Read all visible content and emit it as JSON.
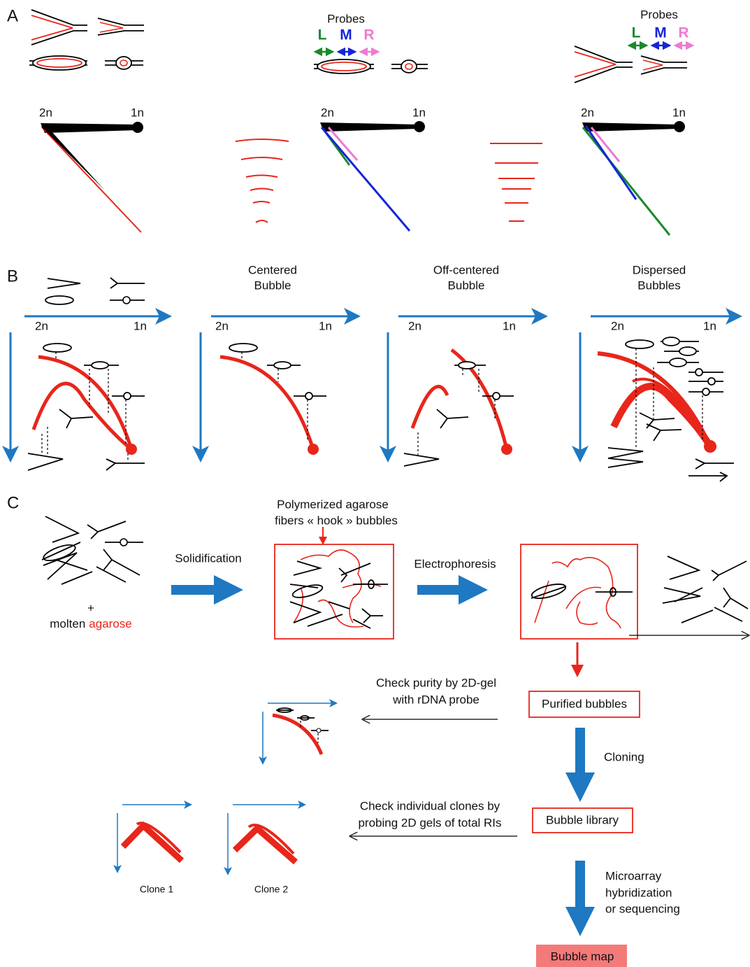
{
  "panel_a": {
    "label": "A",
    "probe_sets": [
      {
        "title": "Probes",
        "left": "L",
        "middle": "M",
        "right": "R"
      },
      {
        "title": "Probes",
        "left": "L",
        "middle": "M",
        "right": "R"
      }
    ],
    "gels": [
      {
        "x_left": "2n",
        "x_right": "1n"
      },
      {
        "x_left": "2n",
        "x_right": "1n"
      },
      {
        "x_left": "2n",
        "x_right": "1n"
      }
    ]
  },
  "panel_b": {
    "label": "B",
    "columns": [
      {
        "x_left": "2n",
        "x_right": "1n"
      },
      {
        "title_lines": [
          "Centered",
          "Bubble"
        ],
        "x_left": "2n",
        "x_right": "1n"
      },
      {
        "title_lines": [
          "Off-centered",
          "Bubble"
        ],
        "x_left": "2n",
        "x_right": "1n"
      },
      {
        "title_lines": [
          "Dispersed",
          "Bubbles"
        ],
        "x_left": "2n",
        "x_right": "1n"
      }
    ]
  },
  "panel_c": {
    "label": "C",
    "plus": "+",
    "molten": {
      "prefix": "molten",
      "highlight": "agarose"
    },
    "solidification": "Solidification",
    "polymerized_lines": [
      "Polymerized agarose",
      "fibers « hook » bubbles"
    ],
    "electrophoresis": "Electrophoresis",
    "check_purity_lines": [
      "Check purity by 2D-gel",
      "with rDNA probe"
    ],
    "purified": "Purified bubbles",
    "cloning": "Cloning",
    "check_clones_lines": [
      "Check individual clones by",
      "probing 2D gels of total RIs"
    ],
    "library": "Bubble library",
    "clones": [
      "Clone 1",
      "Clone 2"
    ],
    "microarray_lines": [
      "Microarray",
      "hybridization",
      "or sequencing"
    ],
    "map": "Bubble map"
  }
}
